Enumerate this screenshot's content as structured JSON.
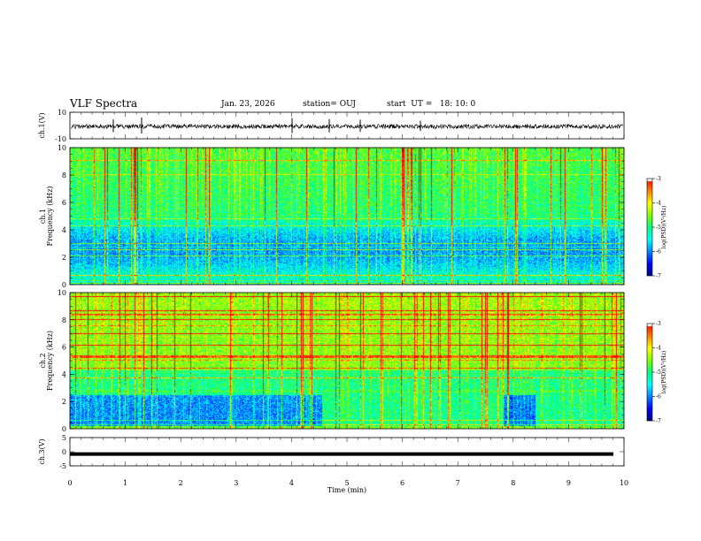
{
  "header": {
    "title": "VLF Spectra",
    "date": "Jan. 23, 2026",
    "station": "station= OUJ",
    "start": "start  UT =   18: 10: 0"
  },
  "chart_data": [
    {
      "type": "line",
      "panel": "ch1-waveform",
      "ylabel": "ch.1(V)",
      "ylim": [
        -10,
        10
      ],
      "yticks": [
        "10",
        "-10"
      ],
      "xlim": [
        0,
        10
      ],
      "signal": "broadband noise near 0 V with sparse spikes"
    },
    {
      "type": "heatmap",
      "panel": "ch1-spectrogram",
      "ylabel": "ch.1 Frequency (kHz)",
      "ylim": [
        0,
        10
      ],
      "yticks": [
        "0",
        "2",
        "4",
        "6",
        "8",
        "10"
      ],
      "xlim": [
        0,
        10
      ],
      "colorbar": {
        "label": "log(PSD)(V²/Hz)",
        "range": [
          -7,
          -3
        ],
        "ticks": [
          "-3",
          "-4",
          "-5",
          "-6",
          "-7"
        ]
      }
    },
    {
      "type": "heatmap",
      "panel": "ch2-spectrogram",
      "ylabel": "ch.2 Frequency (kHz)",
      "ylim": [
        0,
        10
      ],
      "yticks": [
        "0",
        "2",
        "4",
        "6",
        "8",
        "10"
      ],
      "xlim": [
        0,
        10
      ],
      "colorbar": {
        "label": "log(PSD)(V²/Hz)",
        "range": [
          -7,
          -3
        ],
        "ticks": [
          "-3",
          "-4",
          "-5",
          "-6",
          "-7"
        ]
      }
    },
    {
      "type": "line",
      "panel": "ch3-waveform",
      "ylabel": "ch.3(V)",
      "ylim": [
        -5,
        5
      ],
      "yticks": [
        "5",
        "0",
        "-5"
      ],
      "value": -0.5,
      "xlim": [
        0,
        10
      ]
    }
  ],
  "xaxis": {
    "label": "Time  (min)",
    "ticks": [
      "0",
      "1",
      "2",
      "3",
      "4",
      "5",
      "6",
      "7",
      "8",
      "9",
      "10"
    ]
  },
  "colormap": [
    "#000080",
    "#0000ff",
    "#0080ff",
    "#00ffff",
    "#00ff80",
    "#80ff00",
    "#ffff00",
    "#ff8000",
    "#ff0000",
    "#ffffff"
  ]
}
